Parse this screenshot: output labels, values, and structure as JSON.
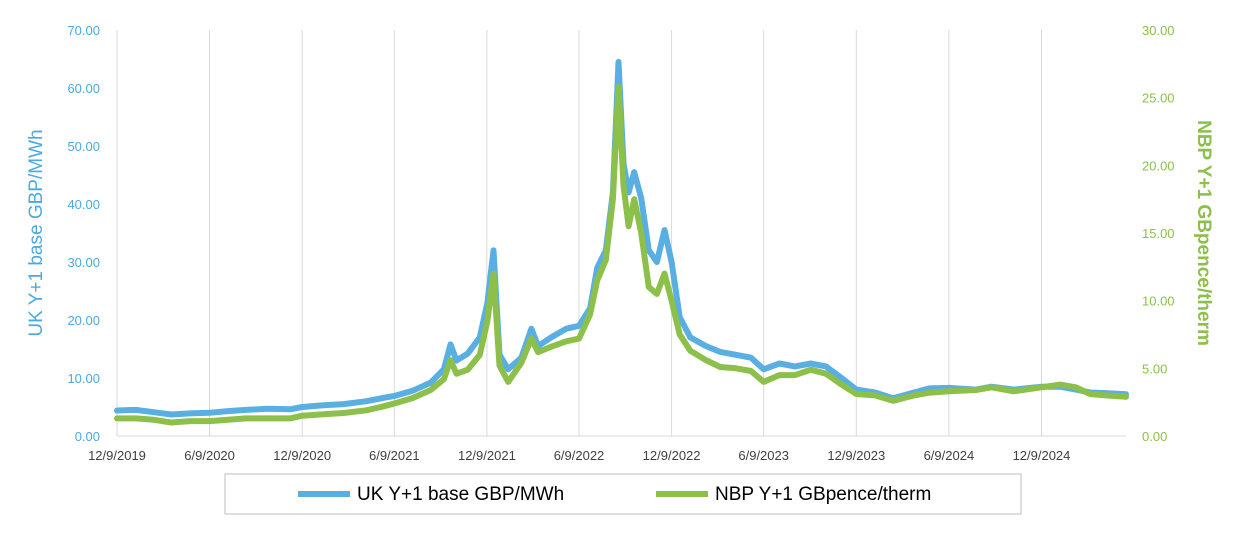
{
  "chart_data": {
    "type": "line",
    "y_left_label": "UK Y+1 base GBP/MWh",
    "y_right_label": "NBP Y+1 GBpence/therm",
    "x_ticks": [
      "12/9/2019",
      "6/9/2020",
      "12/9/2020",
      "6/9/2021",
      "12/9/2021",
      "6/9/2022",
      "12/9/2022",
      "6/9/2023",
      "12/9/2023",
      "6/9/2024",
      "12/9/2024"
    ],
    "y_left_ticks": [
      "0.00",
      "10.00",
      "20.00",
      "30.00",
      "40.00",
      "50.00",
      "60.00",
      "70.00"
    ],
    "y_right_ticks": [
      "0.00",
      "5.00",
      "10.00",
      "15.00",
      "20.00",
      "25.00",
      "30.00"
    ],
    "y_left_range": [
      0,
      70
    ],
    "y_right_range": [
      0,
      30
    ],
    "x_range": [
      "2019-12-09",
      "2025-05-25"
    ],
    "grid": "vertical",
    "legend_position": "bottom",
    "colors": {
      "left_axis": "#4BA9E0",
      "right_axis": "#8CC04A",
      "uk_series": "#5AAFE2",
      "nbp_series": "#8CC04A"
    },
    "series": [
      {
        "name": "UK Y+1 base GBP/MWh",
        "axis": "left",
        "points": [
          [
            "2019-12-09",
            4.4
          ],
          [
            "2020-01-15",
            4.5
          ],
          [
            "2020-02-20",
            4.1
          ],
          [
            "2020-03-25",
            3.7
          ],
          [
            "2020-05-01",
            3.9
          ],
          [
            "2020-06-09",
            4.0
          ],
          [
            "2020-07-15",
            4.3
          ],
          [
            "2020-08-20",
            4.5
          ],
          [
            "2020-10-01",
            4.7
          ],
          [
            "2020-11-15",
            4.6
          ],
          [
            "2020-12-09",
            5.0
          ],
          [
            "2021-01-20",
            5.3
          ],
          [
            "2021-03-01",
            5.5
          ],
          [
            "2021-04-15",
            6.0
          ],
          [
            "2021-05-20",
            6.6
          ],
          [
            "2021-06-09",
            6.9
          ],
          [
            "2021-07-15",
            7.8
          ],
          [
            "2021-08-20",
            9.2
          ],
          [
            "2021-09-15",
            11.5
          ],
          [
            "2021-09-28",
            15.8
          ],
          [
            "2021-10-10",
            13.0
          ],
          [
            "2021-11-01",
            14.2
          ],
          [
            "2021-11-25",
            17.0
          ],
          [
            "2021-12-10",
            23.0
          ],
          [
            "2021-12-22",
            32.0
          ],
          [
            "2022-01-03",
            14.0
          ],
          [
            "2022-01-20",
            11.5
          ],
          [
            "2022-02-15",
            13.5
          ],
          [
            "2022-03-07",
            18.5
          ],
          [
            "2022-03-20",
            15.5
          ],
          [
            "2022-04-15",
            17.0
          ],
          [
            "2022-05-15",
            18.5
          ],
          [
            "2022-06-09",
            19.0
          ],
          [
            "2022-07-01",
            22.0
          ],
          [
            "2022-07-15",
            29.0
          ],
          [
            "2022-08-01",
            32.0
          ],
          [
            "2022-08-15",
            42.0
          ],
          [
            "2022-08-26",
            64.5
          ],
          [
            "2022-09-05",
            47.0
          ],
          [
            "2022-09-15",
            42.0
          ],
          [
            "2022-09-26",
            45.5
          ],
          [
            "2022-10-10",
            41.0
          ],
          [
            "2022-10-25",
            32.0
          ],
          [
            "2022-11-10",
            30.0
          ],
          [
            "2022-11-25",
            35.5
          ],
          [
            "2022-12-09",
            30.0
          ],
          [
            "2022-12-25",
            20.5
          ],
          [
            "2023-01-15",
            17.0
          ],
          [
            "2023-02-15",
            15.5
          ],
          [
            "2023-03-15",
            14.5
          ],
          [
            "2023-04-15",
            14.0
          ],
          [
            "2023-05-15",
            13.5
          ],
          [
            "2023-06-09",
            11.5
          ],
          [
            "2023-07-10",
            12.5
          ],
          [
            "2023-08-10",
            12.0
          ],
          [
            "2023-09-10",
            12.5
          ],
          [
            "2023-10-10",
            12.0
          ],
          [
            "2023-11-10",
            10.0
          ],
          [
            "2023-12-09",
            8.0
          ],
          [
            "2024-01-15",
            7.5
          ],
          [
            "2024-02-20",
            6.5
          ],
          [
            "2024-04-01",
            7.5
          ],
          [
            "2024-05-01",
            8.2
          ],
          [
            "2024-06-09",
            8.3
          ],
          [
            "2024-08-01",
            8.0
          ],
          [
            "2024-09-01",
            8.5
          ],
          [
            "2024-10-15",
            8.0
          ],
          [
            "2024-12-09",
            8.5
          ],
          [
            "2025-01-15",
            8.5
          ],
          [
            "2025-02-15",
            8.0
          ],
          [
            "2025-03-15",
            7.5
          ],
          [
            "2025-04-15",
            7.4
          ],
          [
            "2025-05-25",
            7.2
          ]
        ]
      },
      {
        "name": "NBP Y+1 GBpence/therm",
        "axis": "right",
        "points": [
          [
            "2019-12-09",
            1.3
          ],
          [
            "2020-01-15",
            1.3
          ],
          [
            "2020-02-20",
            1.2
          ],
          [
            "2020-03-25",
            1.0
          ],
          [
            "2020-05-01",
            1.1
          ],
          [
            "2020-06-09",
            1.1
          ],
          [
            "2020-07-15",
            1.2
          ],
          [
            "2020-08-20",
            1.3
          ],
          [
            "2020-10-01",
            1.3
          ],
          [
            "2020-11-15",
            1.3
          ],
          [
            "2020-12-09",
            1.5
          ],
          [
            "2021-01-20",
            1.6
          ],
          [
            "2021-03-01",
            1.7
          ],
          [
            "2021-04-15",
            1.9
          ],
          [
            "2021-05-20",
            2.2
          ],
          [
            "2021-06-09",
            2.4
          ],
          [
            "2021-07-15",
            2.8
          ],
          [
            "2021-08-20",
            3.4
          ],
          [
            "2021-09-15",
            4.2
          ],
          [
            "2021-09-28",
            5.6
          ],
          [
            "2021-10-10",
            4.6
          ],
          [
            "2021-11-01",
            4.9
          ],
          [
            "2021-11-25",
            6.0
          ],
          [
            "2021-12-10",
            8.5
          ],
          [
            "2021-12-22",
            12.0
          ],
          [
            "2022-01-03",
            5.2
          ],
          [
            "2022-01-20",
            4.0
          ],
          [
            "2022-02-15",
            5.4
          ],
          [
            "2022-03-07",
            7.2
          ],
          [
            "2022-03-20",
            6.2
          ],
          [
            "2022-04-15",
            6.6
          ],
          [
            "2022-05-15",
            7.0
          ],
          [
            "2022-06-09",
            7.2
          ],
          [
            "2022-07-01",
            9.0
          ],
          [
            "2022-07-15",
            11.5
          ],
          [
            "2022-08-01",
            13.0
          ],
          [
            "2022-08-15",
            17.5
          ],
          [
            "2022-08-26",
            25.8
          ],
          [
            "2022-09-05",
            18.5
          ],
          [
            "2022-09-15",
            15.5
          ],
          [
            "2022-09-26",
            17.5
          ],
          [
            "2022-10-10",
            15.0
          ],
          [
            "2022-10-25",
            11.0
          ],
          [
            "2022-11-10",
            10.5
          ],
          [
            "2022-11-25",
            12.0
          ],
          [
            "2022-12-09",
            10.0
          ],
          [
            "2022-12-25",
            7.5
          ],
          [
            "2023-01-15",
            6.3
          ],
          [
            "2023-02-15",
            5.6
          ],
          [
            "2023-03-15",
            5.1
          ],
          [
            "2023-04-15",
            5.0
          ],
          [
            "2023-05-15",
            4.8
          ],
          [
            "2023-06-09",
            4.0
          ],
          [
            "2023-07-10",
            4.5
          ],
          [
            "2023-08-10",
            4.5
          ],
          [
            "2023-09-10",
            4.9
          ],
          [
            "2023-10-10",
            4.6
          ],
          [
            "2023-11-10",
            3.8
          ],
          [
            "2023-12-09",
            3.1
          ],
          [
            "2024-01-15",
            3.0
          ],
          [
            "2024-02-20",
            2.6
          ],
          [
            "2024-04-01",
            3.0
          ],
          [
            "2024-05-01",
            3.2
          ],
          [
            "2024-06-09",
            3.3
          ],
          [
            "2024-08-01",
            3.4
          ],
          [
            "2024-09-01",
            3.6
          ],
          [
            "2024-10-15",
            3.3
          ],
          [
            "2024-12-09",
            3.6
          ],
          [
            "2025-01-15",
            3.8
          ],
          [
            "2025-02-15",
            3.6
          ],
          [
            "2025-03-15",
            3.1
          ],
          [
            "2025-04-15",
            3.0
          ],
          [
            "2025-05-25",
            2.9
          ]
        ]
      }
    ]
  }
}
